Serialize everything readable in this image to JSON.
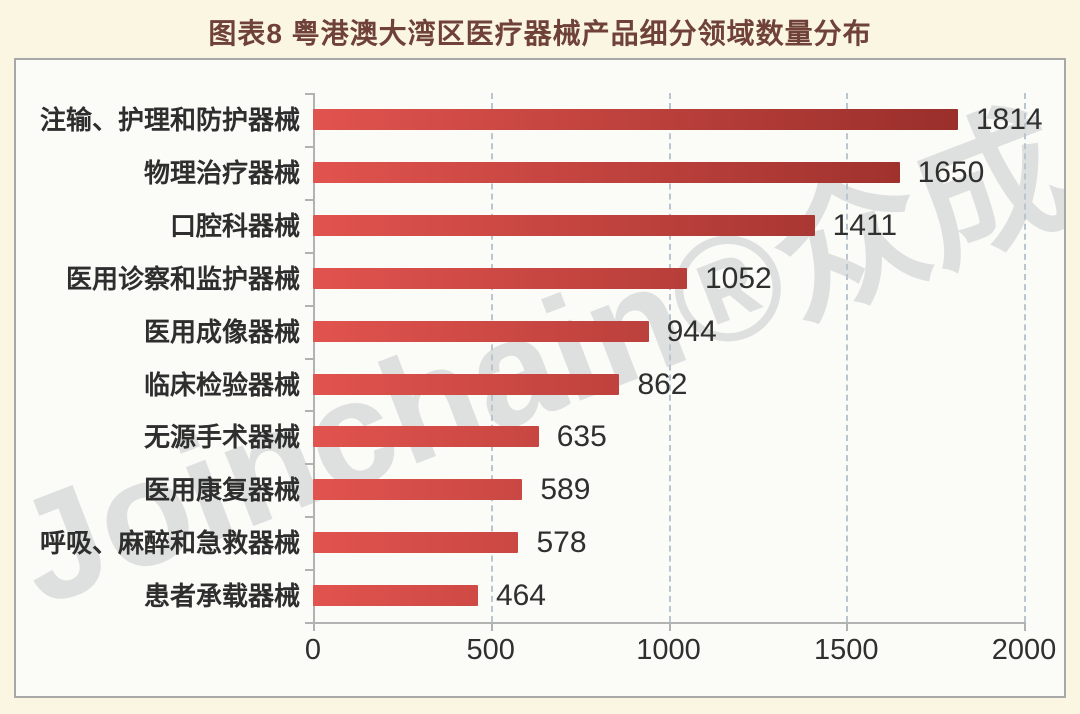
{
  "title": "图表8  粤港澳大湾区医疗器械产品细分领域数量分布",
  "watermark": "Joinchain®众成",
  "chart_data": {
    "type": "bar",
    "orientation": "horizontal",
    "title": "图表8  粤港澳大湾区医疗器械产品细分领域数量分布",
    "categories": [
      "注输、护理和防护器械",
      "物理治疗器械",
      "口腔科器械",
      "医用诊察和监护器械",
      "医用成像器械",
      "临床检验器械",
      "无源手术器械",
      "医用康复器械",
      "呼吸、麻醉和急救器械",
      "患者承载器械"
    ],
    "values": [
      1814,
      1650,
      1411,
      1052,
      944,
      862,
      635,
      589,
      578,
      464
    ],
    "xlim": [
      0,
      2000
    ],
    "x_ticks": [
      0,
      500,
      1000,
      1500,
      2000
    ],
    "grid": "vertical-dashed",
    "legend": "none",
    "value_labels": true
  },
  "colors": {
    "page_bg": "#fbf6e1",
    "chart_bg": "#fbfbf8",
    "border": "#a8a8a8",
    "title_text": "#6f4138",
    "label_text": "#2e2e2e",
    "grid_dash": "#b9c6d0",
    "axis": "#b2b2b2",
    "bar_gradient_start": "#e1534e",
    "bar_gradient_end": "#922b27",
    "watermark": "rgba(140,146,152,0.26)"
  }
}
